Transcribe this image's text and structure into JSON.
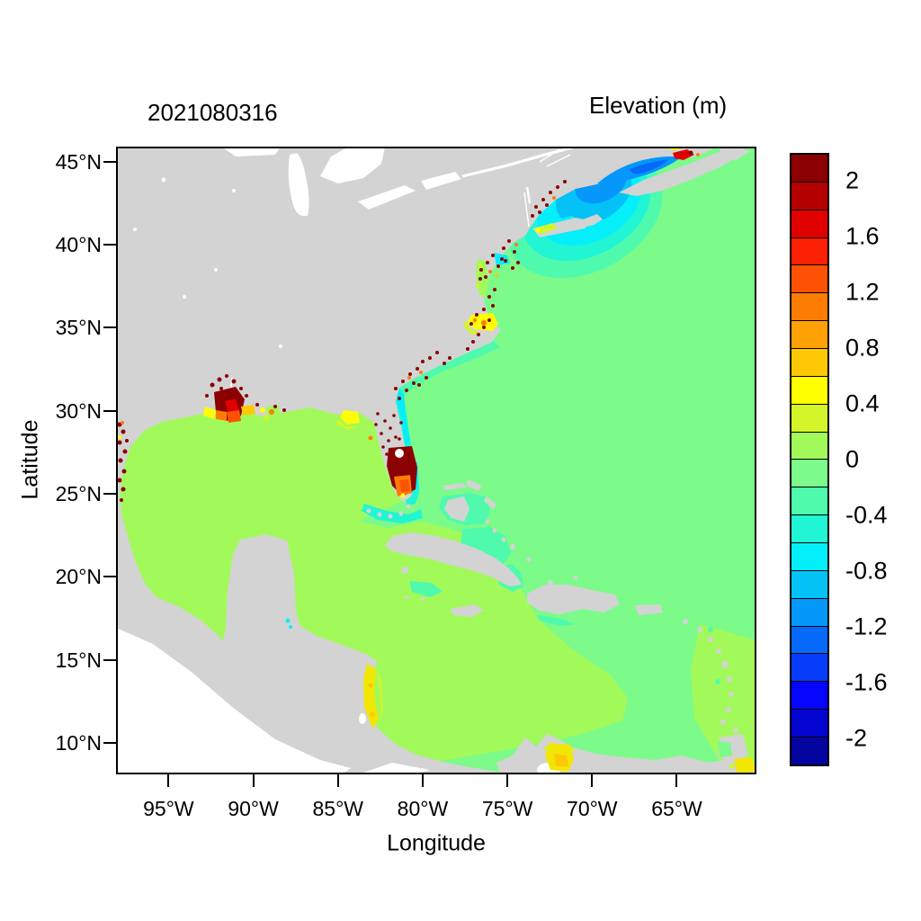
{
  "figure": {
    "date_title": "2021080316",
    "colorbar_title": "Elevation (m)",
    "xlabel": "Longitude",
    "ylabel": "Latitude"
  },
  "axes": {
    "lon_range": [
      -98.1,
      -60.3
    ],
    "lat_range": [
      8.1,
      45.9
    ],
    "lon_ticks": [
      {
        "label": "95°W",
        "lon": -95
      },
      {
        "label": "90°W",
        "lon": -90
      },
      {
        "label": "85°W",
        "lon": -85
      },
      {
        "label": "80°W",
        "lon": -80
      },
      {
        "label": "75°W",
        "lon": -75
      },
      {
        "label": "70°W",
        "lon": -70
      },
      {
        "label": "65°W",
        "lon": -65
      }
    ],
    "lat_ticks": [
      {
        "label": "45°N",
        "lat": 45
      },
      {
        "label": "40°N",
        "lat": 40
      },
      {
        "label": "35°N",
        "lat": 35
      },
      {
        "label": "30°N",
        "lat": 30
      },
      {
        "label": "25°N",
        "lat": 25
      },
      {
        "label": "20°N",
        "lat": 20
      },
      {
        "label": "15°N",
        "lat": 15
      },
      {
        "label": "10°N",
        "lat": 10
      }
    ]
  },
  "colorbar": {
    "labels": [
      "2",
      "1.6",
      "1.2",
      "0.8",
      "0.4",
      "0",
      "-0.4",
      "-0.8",
      "-1.2",
      "-1.6",
      "-2"
    ],
    "colors": [
      "#8B0000",
      "#B40000",
      "#E10000",
      "#FC2004",
      "#FD5204",
      "#FD7D04",
      "#FDA104",
      "#FEC804",
      "#FFFF00",
      "#D3F529",
      "#A2FA5A",
      "#7CFB8A",
      "#50FAAD",
      "#22F5D3",
      "#05EFFA",
      "#04C2F5",
      "#0597FA",
      "#056AFA",
      "#053DFA",
      "#0505FD",
      "#0404D1",
      "#0404A0"
    ]
  },
  "map_colors": {
    "land": "#D3D3D3",
    "no_data": "#FFFFFF",
    "atlantic": "#7CFB8A",
    "gulf_caribbean": "#A2FA5A"
  },
  "chart_data": {
    "type": "heatmap",
    "title": "Elevation (m)",
    "datestamp": "2021080316",
    "xlabel": "Longitude",
    "ylabel": "Latitude",
    "lon_range_deg": [
      -98.1,
      -60.3
    ],
    "lat_range_deg": [
      8.1,
      45.9
    ],
    "lon_tick_values": [
      -95,
      -90,
      -85,
      -80,
      -75,
      -70,
      -65
    ],
    "lat_tick_values": [
      45,
      40,
      35,
      30,
      25,
      20,
      15,
      10
    ],
    "legend_position": "right",
    "colorbar": {
      "units": "m",
      "cell_step": 0.2,
      "range_labeled": [
        -2,
        2
      ],
      "labeled_levels": [
        2,
        1.6,
        1.2,
        0.8,
        0.4,
        0,
        -0.4,
        -0.8,
        -1.2,
        -1.6,
        -2
      ],
      "colors_top_to_bottom": [
        "#8B0000",
        "#B40000",
        "#E10000",
        "#FC2004",
        "#FD5204",
        "#FD7D04",
        "#FDA104",
        "#FEC804",
        "#FFFF00",
        "#D3F529",
        "#A2FA5A",
        "#7CFB8A",
        "#50FAAD",
        "#22F5D3",
        "#05EFFA",
        "#04C2F5",
        "#0597FA",
        "#056AFA",
        "#053DFA",
        "#0505FD",
        "#0404D1",
        "#0404A0"
      ]
    },
    "masks": {
      "land": "#D3D3D3",
      "not_modeled_pacific_and_lakes": "#FFFFFF"
    },
    "regions": [
      {
        "name": "Open Atlantic Ocean",
        "approx_value_m": -0.1
      },
      {
        "name": "Gulf of Mexico",
        "approx_value_m": 0.1
      },
      {
        "name": "Caribbean Sea (west of Antilles)",
        "approx_value_m": 0.1
      },
      {
        "name": "East of Lesser Antilles band",
        "approx_value_m": 0.1
      },
      {
        "name": "Gulf of Maine (concentric low)",
        "approx_value_m": -1.1
      },
      {
        "name": "Bay of Fundy",
        "approx_value_m": -1.4
      },
      {
        "name": "Long Island Sound / NY Bight",
        "approx_value_m": -0.7
      },
      {
        "name": "Florida east-coast shelf band",
        "approx_value_m": -0.5
      },
      {
        "name": "Bahama banks",
        "approx_value_m": -0.3
      },
      {
        "name": "South Florida / Everglades surge blob",
        "approx_value_m": 2.2
      },
      {
        "name": "Mississippi delta surge blob",
        "approx_value_m": 2.2
      },
      {
        "name": "Coastal speckles, US Gulf & East coasts",
        "approx_value_m": 1.5
      },
      {
        "name": "Pamlico Sound",
        "approx_value_m": 0.5
      },
      {
        "name": "Chesapeake Bay",
        "approx_value_m": 0.2
      },
      {
        "name": "Apalachee Bay (NW Florida)",
        "approx_value_m": 0.5
      },
      {
        "name": "Nicaragua / Honduras coast strip",
        "approx_value_m": 0.5
      },
      {
        "name": "Gulf of Venezuela",
        "approx_value_m": 0.7
      },
      {
        "name": "South of Trinidad",
        "approx_value_m": 0.5
      },
      {
        "name": "Minas Basin, Nova Scotia (red spot)",
        "approx_value_m": 1.8
      }
    ]
  }
}
